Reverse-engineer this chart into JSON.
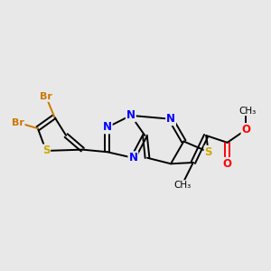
{
  "bg_color": "#e8e8e8",
  "atom_colors": {
    "C": "#000000",
    "N": "#0000ff",
    "S": "#ccaa00",
    "Br": "#cc7700",
    "O": "#ff0000"
  },
  "figsize": [
    3.0,
    3.0
  ],
  "dpi": 100
}
